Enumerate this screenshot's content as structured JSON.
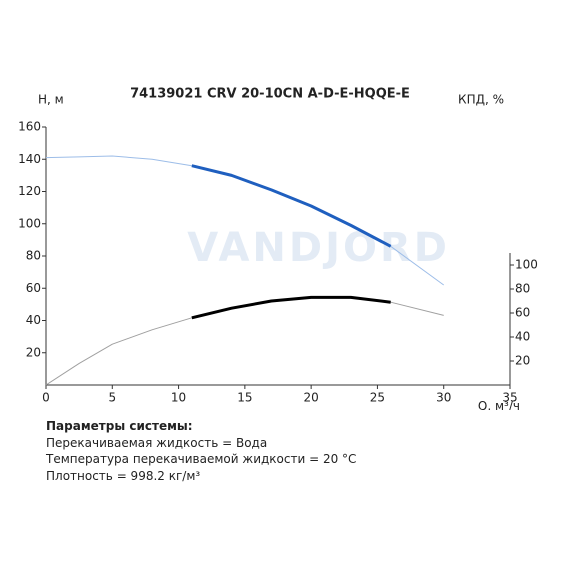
{
  "chart_data": {
    "type": "line",
    "title": "74139021 CRV 20-10CN A-D-E-HQQE-E",
    "y_label": "H, м",
    "y2_label": "КПД, %",
    "x_label": "Q, м³/ч",
    "watermark": "VANDJORD",
    "xlim": [
      0,
      35
    ],
    "xticks": [
      0,
      5,
      10,
      15,
      20,
      25,
      30,
      35
    ],
    "ylim": [
      0,
      160
    ],
    "yticks": [
      20,
      40,
      60,
      80,
      100,
      120,
      140,
      160
    ],
    "y2lim": [
      0,
      215
    ],
    "y2ticks": [
      20,
      40,
      60,
      80,
      100
    ],
    "series": [
      {
        "color": "#9dbde8",
        "width": 1,
        "x": [
          0,
          2.5,
          5,
          8,
          11,
          14,
          17,
          20,
          23,
          26,
          30
        ],
        "values": [
          141,
          141.5,
          142,
          140,
          136,
          130,
          121,
          111,
          99,
          86,
          62
        ]
      },
      {
        "color": "#1f5fbf",
        "width": 3,
        "x": [
          11,
          14,
          17,
          20,
          23,
          26
        ],
        "values": [
          136,
          130,
          121,
          111,
          99,
          86
        ]
      },
      {
        "color": "#a0a0a0",
        "width": 1,
        "axis": "y2",
        "x": [
          0,
          2.5,
          5,
          8,
          11,
          14,
          17,
          20,
          23,
          26,
          30
        ],
        "values": [
          0,
          18,
          34,
          46,
          56,
          64,
          70,
          73,
          73,
          69,
          58
        ]
      },
      {
        "color": "#000000",
        "width": 3,
        "axis": "y2",
        "x": [
          11,
          14,
          17,
          20,
          23,
          26
        ],
        "values": [
          56,
          64,
          70,
          73,
          73,
          69
        ]
      }
    ]
  },
  "parameters": {
    "title": "Параметры системы:",
    "lines": [
      "Перекачиваемая жидкость = Вода",
      "Температура перекачиваемой жидкости = 20 °C",
      "Плотность = 998.2 кг/м³"
    ]
  }
}
